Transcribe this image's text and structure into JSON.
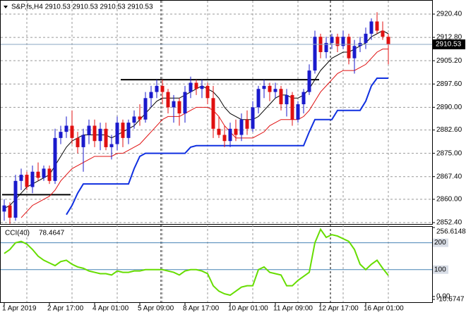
{
  "chart_data": [
    {
      "type": "candlestick",
      "title": "S&P,fs,H4  2910.53 2910.53 2910.53 2910.53",
      "categories": [
        "1 Apr 2019",
        null,
        null,
        null,
        null,
        null,
        null,
        null,
        "2 Apr 17:00",
        null,
        null,
        null,
        null,
        null,
        null,
        null,
        "4 Apr 01:00",
        null,
        null,
        null,
        null,
        null,
        null,
        null,
        "5 Apr 09:00",
        null,
        null,
        null,
        null,
        null,
        null,
        null,
        "8 Apr 17:00",
        null,
        null,
        null,
        null,
        null,
        null,
        null,
        "10 Apr 01:00",
        null,
        null,
        null,
        null,
        null,
        null,
        null,
        "11 Apr 09:00",
        null,
        null,
        null,
        null,
        null,
        null,
        null,
        "12 Apr 17:00",
        null,
        null,
        null,
        null,
        null,
        null,
        null,
        "16 Apr 01:00",
        null,
        null,
        null,
        null
      ],
      "open": [
        2856,
        2858,
        2854,
        2866,
        2868,
        2864,
        2869,
        2867,
        2870,
        2866,
        2880,
        2882,
        2884,
        2880,
        2877,
        2881,
        2884,
        2879,
        2883,
        2877,
        2878,
        2885,
        2880,
        2885,
        2887,
        2886,
        2893,
        2895,
        2897,
        2895,
        2890,
        2892,
        2888,
        2895,
        2898,
        2896,
        2897,
        2893,
        2883,
        2881,
        2879,
        2883,
        2881,
        2886,
        2883,
        2890,
        2896,
        2897,
        2895,
        2896,
        2891,
        2894,
        2886,
        2891,
        2895,
        2902,
        2913,
        2908,
        2911,
        2913,
        2910,
        2913,
        2906,
        2910,
        2911,
        2914,
        2918,
        2915,
        2913
      ],
      "high": [
        2860,
        2859,
        2868,
        2870,
        2869,
        2871,
        2872,
        2871,
        2871,
        2883,
        2884,
        2887,
        2889,
        2882,
        2883,
        2886,
        2886,
        2885,
        2885,
        2881,
        2887,
        2886,
        2886,
        2889,
        2891,
        2895,
        2897,
        2899,
        2899,
        2896,
        2894,
        2893,
        2897,
        2900,
        2899,
        2899,
        2898,
        2897,
        2887,
        2884,
        2885,
        2886,
        2888,
        2889,
        2892,
        2897,
        2899,
        2898,
        2898,
        2897,
        2896,
        2895,
        2892,
        2896,
        2904,
        2915,
        2914,
        2913,
        2914,
        2914,
        2915,
        2914,
        2912,
        2913,
        2916,
        2919,
        2921,
        2918,
        2914
      ],
      "low": [
        2853,
        2852,
        2853,
        2863,
        2863,
        2862,
        2866,
        2866,
        2865,
        2865,
        2878,
        2880,
        2878,
        2875,
        2869,
        2878,
        2877,
        2876,
        2876,
        2873,
        2876,
        2877,
        2878,
        2883,
        2884,
        2885,
        2890,
        2893,
        2891,
        2888,
        2885,
        2884,
        2885,
        2893,
        2894,
        2893,
        2891,
        2880,
        2880,
        2877,
        2877,
        2879,
        2879,
        2881,
        2882,
        2888,
        2893,
        2892,
        2893,
        2889,
        2887,
        2884,
        2885,
        2888,
        2894,
        2901,
        2906,
        2906,
        2909,
        2908,
        2909,
        2904,
        2901,
        2908,
        2909,
        2912,
        2914,
        2912,
        2904
      ],
      "close": [
        2858,
        2854,
        2866,
        2868,
        2864,
        2869,
        2867,
        2870,
        2866,
        2880,
        2882,
        2884,
        2880,
        2877,
        2881,
        2884,
        2879,
        2883,
        2877,
        2878,
        2885,
        2880,
        2885,
        2887,
        2886,
        2893,
        2895,
        2897,
        2895,
        2890,
        2892,
        2888,
        2895,
        2898,
        2896,
        2897,
        2893,
        2883,
        2881,
        2879,
        2883,
        2881,
        2886,
        2883,
        2890,
        2896,
        2897,
        2895,
        2896,
        2891,
        2894,
        2886,
        2891,
        2895,
        2902,
        2913,
        2908,
        2911,
        2913,
        2910,
        2913,
        2906,
        2910,
        2911,
        2914,
        2918,
        2915,
        2913,
        2910.53
      ],
      "up_color": "#1a1acc",
      "down_color": "#e01010",
      "series": [
        {
          "color": "#000000",
          "values": [
            2857,
            2858,
            2860,
            2862,
            2864,
            2865,
            2866,
            2867,
            2868,
            2871,
            2874,
            2877,
            2879,
            2880,
            2881,
            2881,
            2881,
            2881,
            2881,
            2880,
            2881,
            2882,
            2883,
            2884,
            2886,
            2888,
            2890,
            2892,
            2893,
            2893,
            2893,
            2893,
            2894,
            2895,
            2896,
            2897,
            2896,
            2895,
            2893,
            2890,
            2888,
            2887,
            2886,
            2886,
            2886,
            2887,
            2889,
            2891,
            2893,
            2894,
            2894,
            2893,
            2893,
            2894,
            2896,
            2899,
            2902,
            2904,
            2906,
            2907,
            2908,
            2908,
            2909,
            2910,
            2911,
            2913,
            2914,
            2915,
            2914
          ]
        },
        {
          "color": "#e01010",
          "values": [
            null,
            null,
            null,
            2854,
            2856,
            2858,
            2859,
            2860,
            2861,
            2863,
            2866,
            2868,
            2870,
            2871,
            2872,
            2873,
            2874,
            2874,
            2874,
            2874,
            2875,
            2875,
            2876,
            2877,
            2878,
            2880,
            2882,
            2884,
            2886,
            2887,
            2887,
            2887,
            2888,
            2889,
            2890,
            2890,
            2890,
            2889,
            2887,
            2884,
            2882,
            2880,
            2880,
            2880,
            2880,
            2881,
            2882,
            2884,
            2885,
            2886,
            2886,
            2886,
            2886,
            2887,
            2889,
            2892,
            2895,
            2897,
            2899,
            2901,
            2902,
            2902,
            2902,
            2903,
            2904,
            2906,
            2908,
            2909,
            2909
          ]
        },
        {
          "color": "#1030e0",
          "values": [
            null,
            null,
            null,
            null,
            null,
            null,
            null,
            null,
            null,
            null,
            null,
            2855,
            2858,
            2862,
            2865,
            2865,
            2865,
            2865,
            2865,
            2865,
            2865,
            2865,
            2865,
            2870,
            2874,
            2875,
            2875,
            2875,
            2875,
            2875,
            2875,
            2875,
            2875,
            2877,
            2877.5,
            2877.5,
            2877.5,
            2877.5,
            2877.5,
            2877.5,
            2877.5,
            2877.5,
            2877.5,
            2877.5,
            2877.5,
            2877.5,
            2877.5,
            2877.5,
            2877.5,
            2877.5,
            2877.5,
            2877.5,
            2877.5,
            2877.5,
            2882,
            2886,
            2886,
            2886,
            2886,
            2889,
            2889,
            2889,
            2889,
            2889,
            2892,
            2897,
            2899.5,
            2899.5,
            2899.5
          ]
        }
      ],
      "hlines": [
        {
          "value": 2861.5,
          "start": 0,
          "end": 12
        },
        {
          "value": 2899,
          "start": 21,
          "end": 56
        }
      ],
      "current_price": 2910.53,
      "ylim": [
        2851.94,
        2923.85
      ],
      "yticks": [
        {
          "value": 2920.4,
          "label": "2920.40"
        },
        {
          "value": 2912.8,
          "label": "2912.80"
        },
        {
          "value": 2905.2,
          "label": "2905.20"
        },
        {
          "value": 2897.6,
          "label": "2897.60"
        },
        {
          "value": 2890,
          "label": "2890.00"
        },
        {
          "value": 2882.6,
          "label": "2882.60"
        },
        {
          "value": 2875,
          "label": "2875.00"
        },
        {
          "value": 2867.4,
          "label": "2867.40"
        },
        {
          "value": 2860,
          "label": "2860.00"
        },
        {
          "value": 2852.4,
          "label": "2852.40"
        }
      ],
      "grid": true
    },
    {
      "type": "line",
      "title": "CCI(40)",
      "color": "#66dd00",
      "values": [
        160,
        175,
        200,
        205,
        195,
        175,
        150,
        135,
        125,
        115,
        130,
        135,
        120,
        110,
        105,
        95,
        90,
        85,
        85,
        80,
        95,
        90,
        90,
        95,
        95,
        100,
        100,
        100,
        100,
        95,
        90,
        80,
        95,
        100,
        100,
        95,
        85,
        40,
        20,
        10,
        5,
        20,
        35,
        40,
        40,
        100,
        110,
        90,
        85,
        80,
        40,
        40,
        60,
        75,
        90,
        200,
        250,
        220,
        230,
        225,
        215,
        205,
        175,
        120,
        100,
        120,
        135,
        105,
        78.4647
      ],
      "levels": [
        200,
        100
      ],
      "ylim": [
        -10.6747,
        256.6148
      ],
      "yticks": [
        256.6148,
        200,
        100,
        {
          "value": 0,
          "label": "0.00"
        },
        -10.6747
      ]
    }
  ]
}
